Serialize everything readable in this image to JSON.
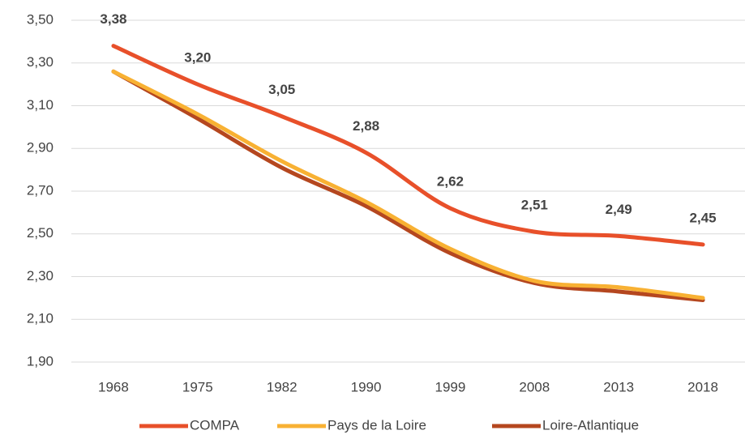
{
  "chart_data": {
    "type": "line",
    "categories": [
      "1968",
      "1975",
      "1982",
      "1990",
      "1999",
      "2008",
      "2013",
      "2018"
    ],
    "series": [
      {
        "name": "COMPA",
        "color": "#e8502a",
        "values": [
          3.38,
          3.2,
          3.05,
          2.88,
          2.62,
          2.51,
          2.49,
          2.45
        ],
        "value_labels": [
          "3,38",
          "3,20",
          "3,05",
          "2,88",
          "2,62",
          "2,51",
          "2,49",
          "2,45"
        ]
      },
      {
        "name": "Pays de la Loire",
        "color": "#f8b133",
        "values": [
          3.26,
          3.06,
          2.84,
          2.65,
          2.43,
          2.28,
          2.25,
          2.2
        ]
      },
      {
        "name": "Loire-Atlantique",
        "color": "#b5471f",
        "values": [
          3.26,
          3.04,
          2.81,
          2.63,
          2.41,
          2.27,
          2.23,
          2.19
        ]
      }
    ],
    "ylim": [
      1.9,
      3.5
    ],
    "yticks": [
      {
        "value": 1.9,
        "label": "1,90"
      },
      {
        "value": 2.1,
        "label": "2,10"
      },
      {
        "value": 2.3,
        "label": "2,30"
      },
      {
        "value": 2.5,
        "label": "2,50"
      },
      {
        "value": 2.7,
        "label": "2,70"
      },
      {
        "value": 2.9,
        "label": "2,90"
      },
      {
        "value": 3.1,
        "label": "3,10"
      },
      {
        "value": 3.3,
        "label": "3,30"
      },
      {
        "value": 3.5,
        "label": "3,50"
      }
    ],
    "grid": true,
    "legend": "bottom"
  }
}
